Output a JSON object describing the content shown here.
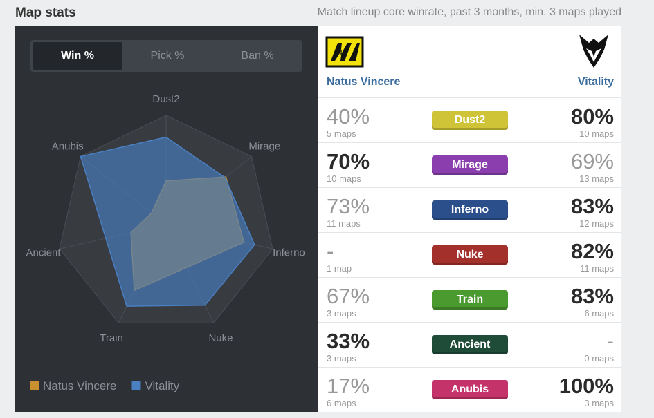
{
  "header": {
    "title": "Map stats",
    "subtitle": "Match lineup core winrate, past 3 months, min. 3 maps played"
  },
  "tabs": {
    "items": [
      "Win %",
      "Pick %",
      "Ban %"
    ],
    "active": 0
  },
  "chart_data": {
    "type": "radar",
    "categories": [
      "Dust2",
      "Mirage",
      "Inferno",
      "Nuke",
      "Train",
      "Ancient",
      "Anubis"
    ],
    "series": [
      {
        "name": "Natus Vincere",
        "color": "#c8902e",
        "values": [
          40,
          70,
          73,
          null,
          67,
          33,
          17
        ]
      },
      {
        "name": "Vitality",
        "color": "#4a7fc1",
        "values": [
          80,
          69,
          83,
          82,
          83,
          null,
          100
        ]
      }
    ],
    "rlim": [
      0,
      100
    ],
    "rticks": [
      20,
      40,
      60,
      80,
      100
    ],
    "grid": true,
    "legend": "bottom-left"
  },
  "teams": [
    "Natus Vincere",
    "Vitality"
  ],
  "table": {
    "rows": [
      {
        "map": "Dust2",
        "color": "#cfc437",
        "left": {
          "winrate": "40%",
          "maps": "5 maps"
        },
        "right": {
          "winrate": "80%",
          "maps": "10 maps"
        },
        "winner": "right"
      },
      {
        "map": "Mirage",
        "color": "#8b3fae",
        "left": {
          "winrate": "70%",
          "maps": "10 maps"
        },
        "right": {
          "winrate": "69%",
          "maps": "13 maps"
        },
        "winner": "left"
      },
      {
        "map": "Inferno",
        "color": "#2b4f8b",
        "left": {
          "winrate": "73%",
          "maps": "11 maps"
        },
        "right": {
          "winrate": "83%",
          "maps": "12 maps"
        },
        "winner": "right"
      },
      {
        "map": "Nuke",
        "color": "#a3302b",
        "left": {
          "winrate": "-",
          "maps": "1 map"
        },
        "right": {
          "winrate": "82%",
          "maps": "11 maps"
        },
        "winner": "right"
      },
      {
        "map": "Train",
        "color": "#4b9a30",
        "left": {
          "winrate": "67%",
          "maps": "3 maps"
        },
        "right": {
          "winrate": "83%",
          "maps": "6 maps"
        },
        "winner": "right"
      },
      {
        "map": "Ancient",
        "color": "#1f4b39",
        "left": {
          "winrate": "33%",
          "maps": "3 maps"
        },
        "right": {
          "winrate": "-",
          "maps": "0 maps"
        },
        "winner": "left"
      },
      {
        "map": "Anubis",
        "color": "#c4346a",
        "left": {
          "winrate": "17%",
          "maps": "6 maps"
        },
        "right": {
          "winrate": "100%",
          "maps": "3 maps"
        },
        "winner": "right"
      }
    ]
  }
}
